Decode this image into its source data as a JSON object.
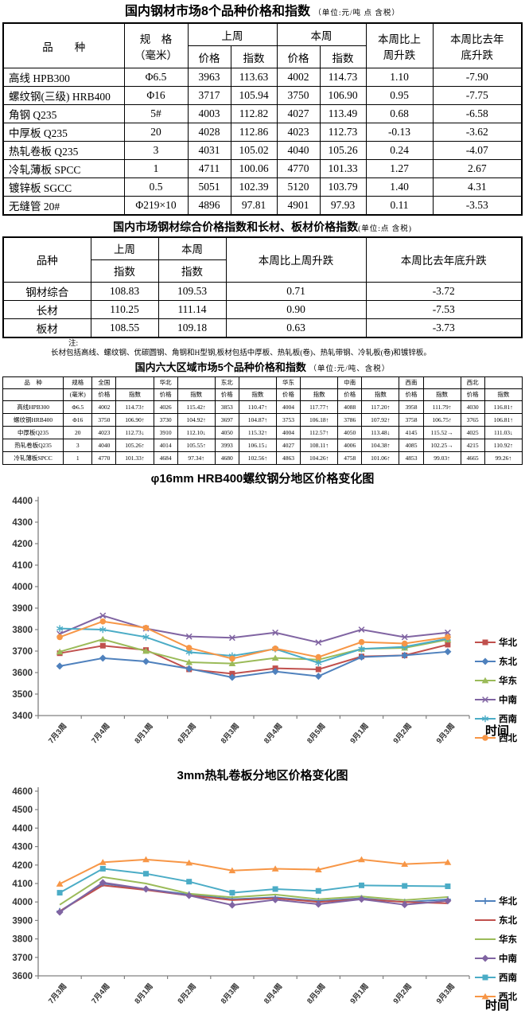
{
  "table1": {
    "title": "国内钢材市场8个品种价格和指数",
    "unit": "（单位:元/吨 点 含税）",
    "header": {
      "product": "品　　种",
      "spec_line1": "规　格",
      "spec_line2": "（毫米）",
      "last_week": "上周",
      "this_week": "本周",
      "price": "价格",
      "index": "指数",
      "wow_line1": "本周比上",
      "wow_line2": "周升跌",
      "ytd_line1": "本周比去年",
      "ytd_line2": "底升跌"
    },
    "rows": [
      [
        "高线 HPB300",
        "Φ6.5",
        "3963",
        "113.63",
        "4002",
        "114.73",
        "1.10",
        "-7.90"
      ],
      [
        "螺纹钢(三级) HRB400",
        "Φ16",
        "3717",
        "105.94",
        "3750",
        "106.90",
        "0.95",
        "-7.75"
      ],
      [
        "角钢 Q235",
        "5#",
        "4003",
        "112.82",
        "4027",
        "113.49",
        "0.68",
        "-6.58"
      ],
      [
        "中厚板 Q235",
        "20",
        "4028",
        "112.86",
        "4023",
        "112.73",
        "-0.13",
        "-3.62"
      ],
      [
        "热轧卷板 Q235",
        "3",
        "4031",
        "105.02",
        "4040",
        "105.26",
        "0.24",
        "-4.07"
      ],
      [
        "冷轧薄板 SPCC",
        "1",
        "4711",
        "100.06",
        "4770",
        "101.33",
        "1.27",
        "2.67"
      ],
      [
        "镀锌板 SGCC",
        "0.5",
        "5051",
        "102.39",
        "5120",
        "103.79",
        "1.40",
        "4.31"
      ],
      [
        "无缝管 20#",
        "Φ219×10",
        "4896",
        "97.81",
        "4901",
        "97.93",
        "0.11",
        "-3.53"
      ]
    ]
  },
  "table2": {
    "title": "国内市场钢材综合价格指数和长材、板材价格指数",
    "unit": "(单位:点 含税)",
    "header": {
      "product": "品种",
      "last_week": "上周",
      "this_week": "本周",
      "index": "指数",
      "wow": "本周比上周升跌",
      "ytd": "本周比去年底升跌"
    },
    "rows": [
      [
        "钢材综合",
        "108.83",
        "109.53",
        "0.71",
        "-3.72"
      ],
      [
        "长材",
        "110.25",
        "111.14",
        "0.90",
        "-7.53"
      ],
      [
        "板材",
        "108.55",
        "109.18",
        "0.63",
        "-3.73"
      ]
    ]
  },
  "note": {
    "label": "注:",
    "text": "长材包括高线、螺纹钢、优碳圆钢、角钢和H型钢,板材包括中厚板、热轧板(卷)、热轧带钢、冷轧板(卷)和镀锌板。"
  },
  "table3": {
    "title": "国内六大区域市场5个品种价格和指数",
    "unit": "（单位:元/吨、含税）",
    "header": {
      "product": "品　种",
      "spec_line1": "规格",
      "spec_line2": "(毫米)",
      "price": "价格",
      "index": "指数"
    },
    "regions": [
      "全国",
      "华北",
      "东北",
      "华东",
      "中南",
      "西南",
      "西北"
    ],
    "rows": [
      {
        "name": "高线HPB300",
        "spec": "Φ6.5",
        "values": [
          [
            "4002",
            "114.73↑"
          ],
          [
            "4026",
            "115.42↑"
          ],
          [
            "3853",
            "110.47↑"
          ],
          [
            "4004",
            "117.77↑"
          ],
          [
            "4088",
            "117.20↑"
          ],
          [
            "3958",
            "111.79↑"
          ],
          [
            "4030",
            "116.81↑"
          ]
        ]
      },
      {
        "name": "螺纹钢HRB400",
        "spec": "Φ16",
        "values": [
          [
            "3750",
            "106.90↑"
          ],
          [
            "3730",
            "104.92↑"
          ],
          [
            "3697",
            "104.87↑"
          ],
          [
            "3753",
            "106.18↑"
          ],
          [
            "3786",
            "107.92↑"
          ],
          [
            "3758",
            "106.75↑"
          ],
          [
            "3765",
            "106.81↑"
          ]
        ]
      },
      {
        "name": "中厚板Q235",
        "spec": "20",
        "values": [
          [
            "4023",
            "112.73↓"
          ],
          [
            "3910",
            "112.10↓"
          ],
          [
            "4050",
            "115.32↑"
          ],
          [
            "4004",
            "112.57↑"
          ],
          [
            "4050",
            "113.48↓"
          ],
          [
            "4145",
            "115.52→"
          ],
          [
            "4025",
            "111.03↓"
          ]
        ]
      },
      {
        "name": "热轧卷板Q235",
        "spec": "3",
        "values": [
          [
            "4040",
            "105.26↑"
          ],
          [
            "4014",
            "105.55↑"
          ],
          [
            "3993",
            "106.15↓"
          ],
          [
            "4027",
            "108.11↑"
          ],
          [
            "4006",
            "104.38↑"
          ],
          [
            "4085",
            "102.25→"
          ],
          [
            "4215",
            "110.92↑"
          ]
        ]
      },
      {
        "name": "冷轧薄板SPCC",
        "spec": "1",
        "values": [
          [
            "4770",
            "101.33↑"
          ],
          [
            "4684",
            "97.34↑"
          ],
          [
            "4680",
            "102.56↑"
          ],
          [
            "4863",
            "104.26↑"
          ],
          [
            "4758",
            "101.06↑"
          ],
          [
            "4853",
            "99.03↑"
          ],
          [
            "4665",
            "99.26↑"
          ]
        ]
      }
    ]
  },
  "chart_data": [
    {
      "type": "line",
      "title": "φ16mm HRB400螺纹钢分地区价格变化图",
      "xlabel": "时间",
      "ylabel": "",
      "ylim": [
        3400,
        4400
      ],
      "ystep": 100,
      "grid": false,
      "legend_position": "right",
      "categories": [
        "7月3周",
        "7月4周",
        "8月1周",
        "8月2周",
        "8月3周",
        "8月4周",
        "8月5周",
        "9月1周",
        "9月2周",
        "9月3周"
      ],
      "series": [
        {
          "name": "华北",
          "color": "#C0504D",
          "marker": "square",
          "values": [
            3690,
            3725,
            3705,
            3615,
            3595,
            3620,
            3615,
            3675,
            3680,
            3730
          ]
        },
        {
          "name": "东北",
          "color": "#4F81BD",
          "marker": "diamond",
          "values": [
            3630,
            3667,
            3652,
            3618,
            3578,
            3605,
            3583,
            3672,
            3680,
            3697
          ]
        },
        {
          "name": "华东",
          "color": "#9BBB59",
          "marker": "triangle",
          "values": [
            3697,
            3755,
            3700,
            3648,
            3642,
            3668,
            3660,
            3710,
            3715,
            3753
          ]
        },
        {
          "name": "中南",
          "color": "#8064A2",
          "marker": "x",
          "values": [
            3780,
            3865,
            3805,
            3768,
            3762,
            3786,
            3740,
            3800,
            3765,
            3786
          ]
        },
        {
          "name": "西南",
          "color": "#4BACC6",
          "marker": "asterisk",
          "values": [
            3805,
            3800,
            3765,
            3695,
            3678,
            3710,
            3645,
            3710,
            3720,
            3758
          ]
        },
        {
          "name": "西北",
          "color": "#F79646",
          "marker": "circle",
          "values": [
            3765,
            3838,
            3808,
            3715,
            3665,
            3712,
            3672,
            3742,
            3735,
            3765
          ]
        }
      ]
    },
    {
      "type": "line",
      "title": "3mm热轧卷板分地区价格变化图",
      "xlabel": "时间",
      "ylabel": "",
      "ylim": [
        3600,
        4600
      ],
      "ystep": 100,
      "grid": false,
      "legend_position": "right",
      "categories": [
        "7月3周",
        "7月4周",
        "8月1周",
        "8月2周",
        "8月3周",
        "8月4周",
        "8月5周",
        "9月1周",
        "9月2周",
        "9月3周"
      ],
      "series": [
        {
          "name": "华北",
          "color": "#4F81BD",
          "marker": "plus",
          "values": [
            3950,
            4100,
            4070,
            4040,
            4015,
            4025,
            4005,
            4020,
            4000,
            4014
          ]
        },
        {
          "name": "东北",
          "color": "#C0504D",
          "marker": "none",
          "values": [
            3950,
            4090,
            4065,
            4035,
            4010,
            4020,
            4000,
            4015,
            4000,
            3993
          ]
        },
        {
          "name": "华东",
          "color": "#9BBB59",
          "marker": "none",
          "values": [
            3985,
            4135,
            4100,
            4045,
            4025,
            4040,
            4015,
            4030,
            4010,
            4027
          ]
        },
        {
          "name": "中南",
          "color": "#8064A2",
          "marker": "diamond",
          "values": [
            3945,
            4105,
            4070,
            4035,
            3983,
            4012,
            3988,
            4015,
            3985,
            4006
          ]
        },
        {
          "name": "西南",
          "color": "#4BACC6",
          "marker": "square",
          "values": [
            4050,
            4180,
            4153,
            4110,
            4050,
            4070,
            4060,
            4090,
            4087,
            4085
          ]
        },
        {
          "name": "西北",
          "color": "#F79646",
          "marker": "triangle",
          "values": [
            4098,
            4215,
            4230,
            4212,
            4170,
            4180,
            4175,
            4230,
            4205,
            4215
          ]
        }
      ]
    }
  ]
}
